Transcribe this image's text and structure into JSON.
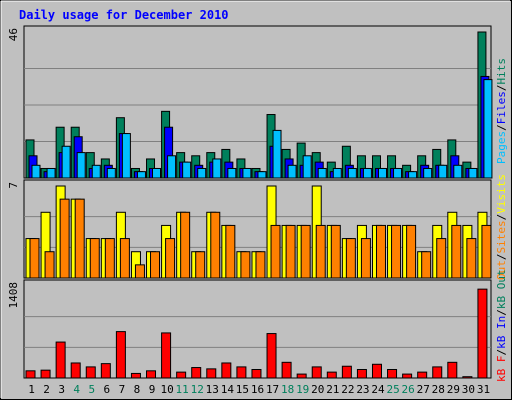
{
  "chart_data": [
    {
      "type": "bar",
      "title": "Daily usage for December 2010",
      "categories": [
        "1",
        "2",
        "3",
        "4",
        "5",
        "6",
        "7",
        "8",
        "9",
        "10",
        "11",
        "12",
        "13",
        "14",
        "15",
        "16",
        "17",
        "18",
        "19",
        "20",
        "21",
        "22",
        "23",
        "24",
        "25",
        "26",
        "27",
        "28",
        "29",
        "30",
        "31"
      ],
      "weekend_days": [
        "4",
        "5",
        "11",
        "12",
        "18",
        "19",
        "25",
        "26"
      ],
      "ylabel_max": "46",
      "ylim": [
        0,
        46
      ],
      "series": [
        {
          "name": "Hits",
          "color": "#00805c",
          "values": [
            12,
            3,
            16,
            16,
            8,
            6,
            19,
            3,
            6,
            21,
            8,
            7,
            8,
            9,
            6,
            3,
            20,
            9,
            11,
            8,
            5,
            10,
            7,
            7,
            7,
            4,
            7,
            9,
            12,
            5,
            46
          ]
        },
        {
          "name": "Files",
          "color": "#0000ff",
          "values": [
            7,
            2,
            8,
            13,
            3,
            4,
            14,
            2,
            3,
            16,
            5,
            4,
            5,
            5,
            3,
            2,
            10,
            6,
            4,
            5,
            2,
            4,
            3,
            3,
            3,
            2,
            4,
            4,
            7,
            3,
            32
          ]
        },
        {
          "name": "Pages",
          "color": "#00bfff",
          "values": [
            4,
            3,
            10,
            8,
            4,
            3,
            14,
            2,
            3,
            7,
            5,
            3,
            6,
            3,
            3,
            2,
            15,
            4,
            7,
            3,
            3,
            3,
            3,
            3,
            3,
            2,
            3,
            4,
            4,
            3,
            31
          ]
        }
      ]
    },
    {
      "type": "bar",
      "ylabel_max": "7",
      "ylim": [
        0,
        7
      ],
      "series": [
        {
          "name": "Visits",
          "color": "#ffff00",
          "values": [
            3,
            5,
            7,
            6,
            3,
            3,
            5,
            2,
            2,
            4,
            5,
            2,
            5,
            4,
            2,
            2,
            7,
            4,
            4,
            7,
            4,
            3,
            4,
            4,
            4,
            4,
            2,
            4,
            5,
            4,
            5
          ]
        },
        {
          "name": "Sites",
          "color": "#ff8000",
          "values": [
            3,
            2,
            6,
            6,
            3,
            3,
            3,
            1,
            2,
            3,
            5,
            2,
            5,
            4,
            2,
            2,
            4,
            4,
            4,
            4,
            4,
            3,
            3,
            4,
            4,
            4,
            2,
            3,
            4,
            3,
            4
          ]
        }
      ]
    },
    {
      "type": "bar",
      "ylabel_max": "1408",
      "ylim": [
        0,
        1408
      ],
      "series": [
        {
          "name": "KBytes",
          "color": "#ff0000",
          "values": [
            110,
            120,
            550,
            230,
            170,
            220,
            710,
            70,
            110,
            690,
            90,
            160,
            140,
            230,
            170,
            130,
            680,
            240,
            60,
            170,
            90,
            180,
            130,
            210,
            130,
            60,
            90,
            170,
            240,
            20,
            1360
          ]
        }
      ]
    }
  ],
  "legend": {
    "top": [
      {
        "text": "Pages",
        "color": "#00bfff"
      },
      {
        "text": "Files",
        "color": "#0000ff"
      },
      {
        "text": "Hits",
        "color": "#00805c"
      }
    ],
    "middle": [
      {
        "text": "Out",
        "color": "#ff8000"
      },
      {
        "text": "Sites",
        "color": "#ff8000"
      },
      {
        "text": "Visits",
        "color": "#ffff00"
      }
    ],
    "bottom": [
      {
        "text": "kB F",
        "color": "#ff0000"
      },
      {
        "text": "kB In",
        "color": "#0000ff"
      },
      {
        "text": "kB Out",
        "color": "#00805c"
      }
    ]
  },
  "colors": {
    "title": "#0000ff",
    "background": "#c0c0c0",
    "plot_bg": "#c0c0c0",
    "weekend_label": "#00805c",
    "weekday_label": "#000000",
    "grid": "#808080"
  }
}
